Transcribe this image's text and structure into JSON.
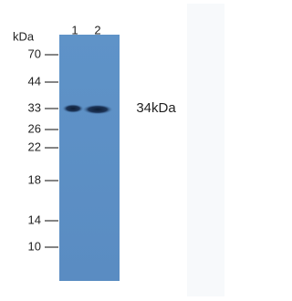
{
  "lanes": [
    "1",
    "2"
  ],
  "marker_unit": "kDa",
  "markers": [
    70,
    44,
    33,
    26,
    22,
    18,
    14,
    10
  ],
  "band_label": "34kDa"
}
